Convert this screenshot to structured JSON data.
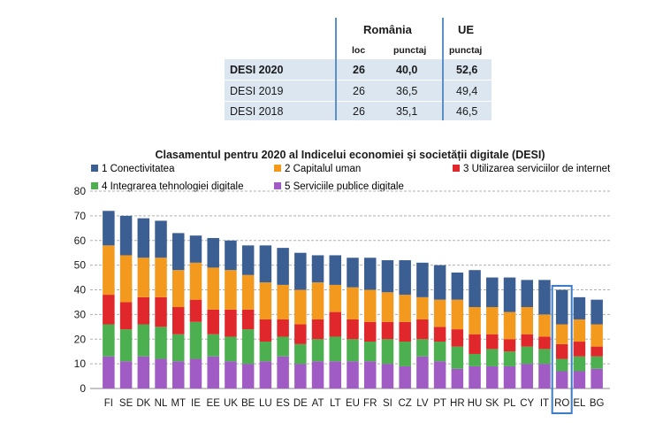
{
  "table": {
    "romania_header": "România",
    "ue_header": "UE",
    "col_loc": "loc",
    "col_punctaj_ro": "punctaj",
    "col_punctaj_ue": "punctaj",
    "rows": [
      {
        "label": "DESI 2020",
        "loc": "26",
        "punctaj": "40,0",
        "ue": "52,6",
        "bold": true
      },
      {
        "label": "DESI 2019",
        "loc": "26",
        "punctaj": "36,5",
        "ue": "49,4",
        "bold": false
      },
      {
        "label": "DESI 2018",
        "loc": "26",
        "punctaj": "35,1",
        "ue": "46,5",
        "bold": false
      }
    ],
    "colors": {
      "row_bg": "#dce6f1",
      "lines": "#5b8fc7"
    }
  },
  "chart_data": {
    "type": "bar",
    "stacked": true,
    "title": "Clasamentul pentru 2020 al Indicelui economiei și societății digitale (DESI)",
    "xlabel": "",
    "ylabel": "",
    "ylim": [
      0,
      80
    ],
    "yticks": [
      "0",
      "10",
      "20",
      "30",
      "40",
      "50",
      "60",
      "70",
      "80"
    ],
    "grid": "horizontal dashed",
    "legend_placement": "top",
    "highlight_category": "RO",
    "categories": [
      "FI",
      "SE",
      "DK",
      "NL",
      "MT",
      "IE",
      "EE",
      "UK",
      "BE",
      "LU",
      "ES",
      "DE",
      "AT",
      "LT",
      "EU",
      "FR",
      "SI",
      "CZ",
      "LV",
      "PT",
      "HR",
      "HU",
      "SK",
      "PL",
      "CY",
      "IT",
      "RO",
      "EL",
      "BG"
    ],
    "series": [
      {
        "name": "5 Serviciile publice digitale",
        "color": "#a05bc4",
        "values": [
          13,
          11,
          13,
          12,
          11,
          12,
          13,
          11,
          10,
          11,
          13,
          10,
          11,
          11,
          11,
          11,
          10,
          9,
          13,
          11,
          8,
          9,
          9,
          9,
          10,
          10,
          7,
          7,
          8
        ]
      },
      {
        "name": "4 Integrarea tehnologiei digitale",
        "color": "#4caf50",
        "values": [
          13,
          13,
          13,
          13,
          11,
          15,
          9,
          10,
          14,
          8,
          8,
          8,
          9,
          10,
          9,
          8,
          10,
          10,
          7,
          8,
          9,
          5,
          7,
          6,
          7,
          6,
          5,
          6,
          5
        ]
      },
      {
        "name": "3 Utilizarea serviciilor de internet",
        "color": "#e0272b",
        "values": [
          12,
          11,
          11,
          12,
          11,
          9,
          10,
          11,
          8,
          9,
          7,
          8,
          8,
          10,
          8,
          8,
          7,
          8,
          8,
          6,
          7,
          8,
          6,
          5,
          5,
          5,
          6,
          6,
          4
        ]
      },
      {
        "name": "2 Capitalul uman",
        "color": "#f39a1e",
        "values": [
          20,
          19,
          16,
          16,
          15,
          15,
          17,
          16,
          14,
          15,
          14,
          14,
          15,
          11,
          13,
          13,
          12,
          11,
          9,
          11,
          12,
          11,
          11,
          11,
          11,
          9,
          8,
          9,
          9
        ]
      },
      {
        "name": "1 Conectivitatea",
        "color": "#3c5f93",
        "values": [
          14,
          16,
          16,
          15,
          15,
          11,
          12,
          12,
          12,
          15,
          15,
          15,
          11,
          12,
          12,
          13,
          13,
          14,
          14,
          14,
          11,
          15,
          12,
          14,
          11,
          14,
          14,
          9,
          10
        ]
      }
    ],
    "legend": [
      {
        "label": "1 Conectivitatea",
        "color": "#3c5f93"
      },
      {
        "label": "2 Capitalul uman",
        "color": "#f39a1e"
      },
      {
        "label": "3 Utilizarea serviciilor de internet",
        "color": "#e0272b"
      },
      {
        "label": "4 Integrarea tehnologiei digitale",
        "color": "#4caf50"
      },
      {
        "label": "5 Serviciile publice digitale",
        "color": "#a05bc4"
      }
    ],
    "highlight_color": "#3d7cc9",
    "grid_color": "#b0b0b0"
  }
}
